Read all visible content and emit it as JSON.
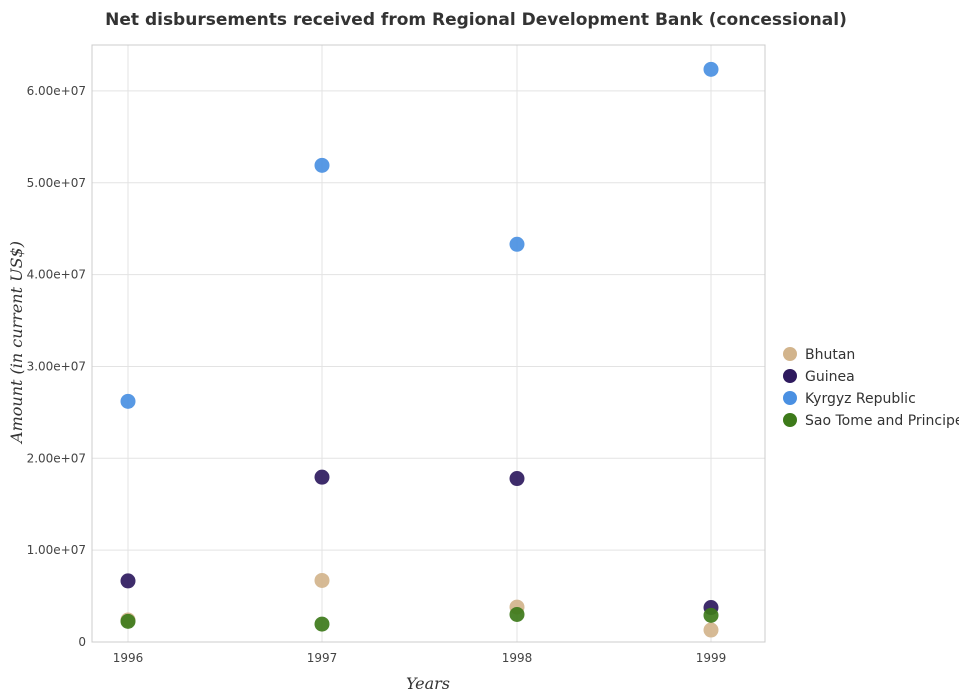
{
  "chart_data": {
    "type": "scatter",
    "title": "Net disbursements received from Regional Development Bank (concessional)",
    "xlabel": "Years",
    "ylabel": "Amount (in current US$)",
    "categories": [
      "1996",
      "1997",
      "1998",
      "1999"
    ],
    "ylim": [
      0,
      65000000
    ],
    "yticks": [
      0,
      10000000,
      20000000,
      30000000,
      40000000,
      50000000,
      60000000
    ],
    "ytick_labels": [
      "0",
      "1.00e+07",
      "2.00e+07",
      "3.00e+07",
      "4.00e+07",
      "5.00e+07",
      "6.00e+07"
    ],
    "grid": true,
    "legend_position": "right",
    "series": [
      {
        "name": "Bhutan",
        "color": "#d2b48c",
        "values": [
          2400000,
          6700000,
          3800000,
          1300000
        ]
      },
      {
        "name": "Guinea",
        "color": "#2e1a5e",
        "values": [
          6650000,
          17950000,
          17800000,
          3750000
        ]
      },
      {
        "name": "Kyrgyz Republic",
        "color": "#4a90e2",
        "values": [
          26200000,
          51900000,
          43300000,
          62350000
        ]
      },
      {
        "name": "Sao Tome and Principe",
        "color": "#3d7a1a",
        "values": [
          2250000,
          1950000,
          3000000,
          2900000
        ]
      }
    ]
  }
}
